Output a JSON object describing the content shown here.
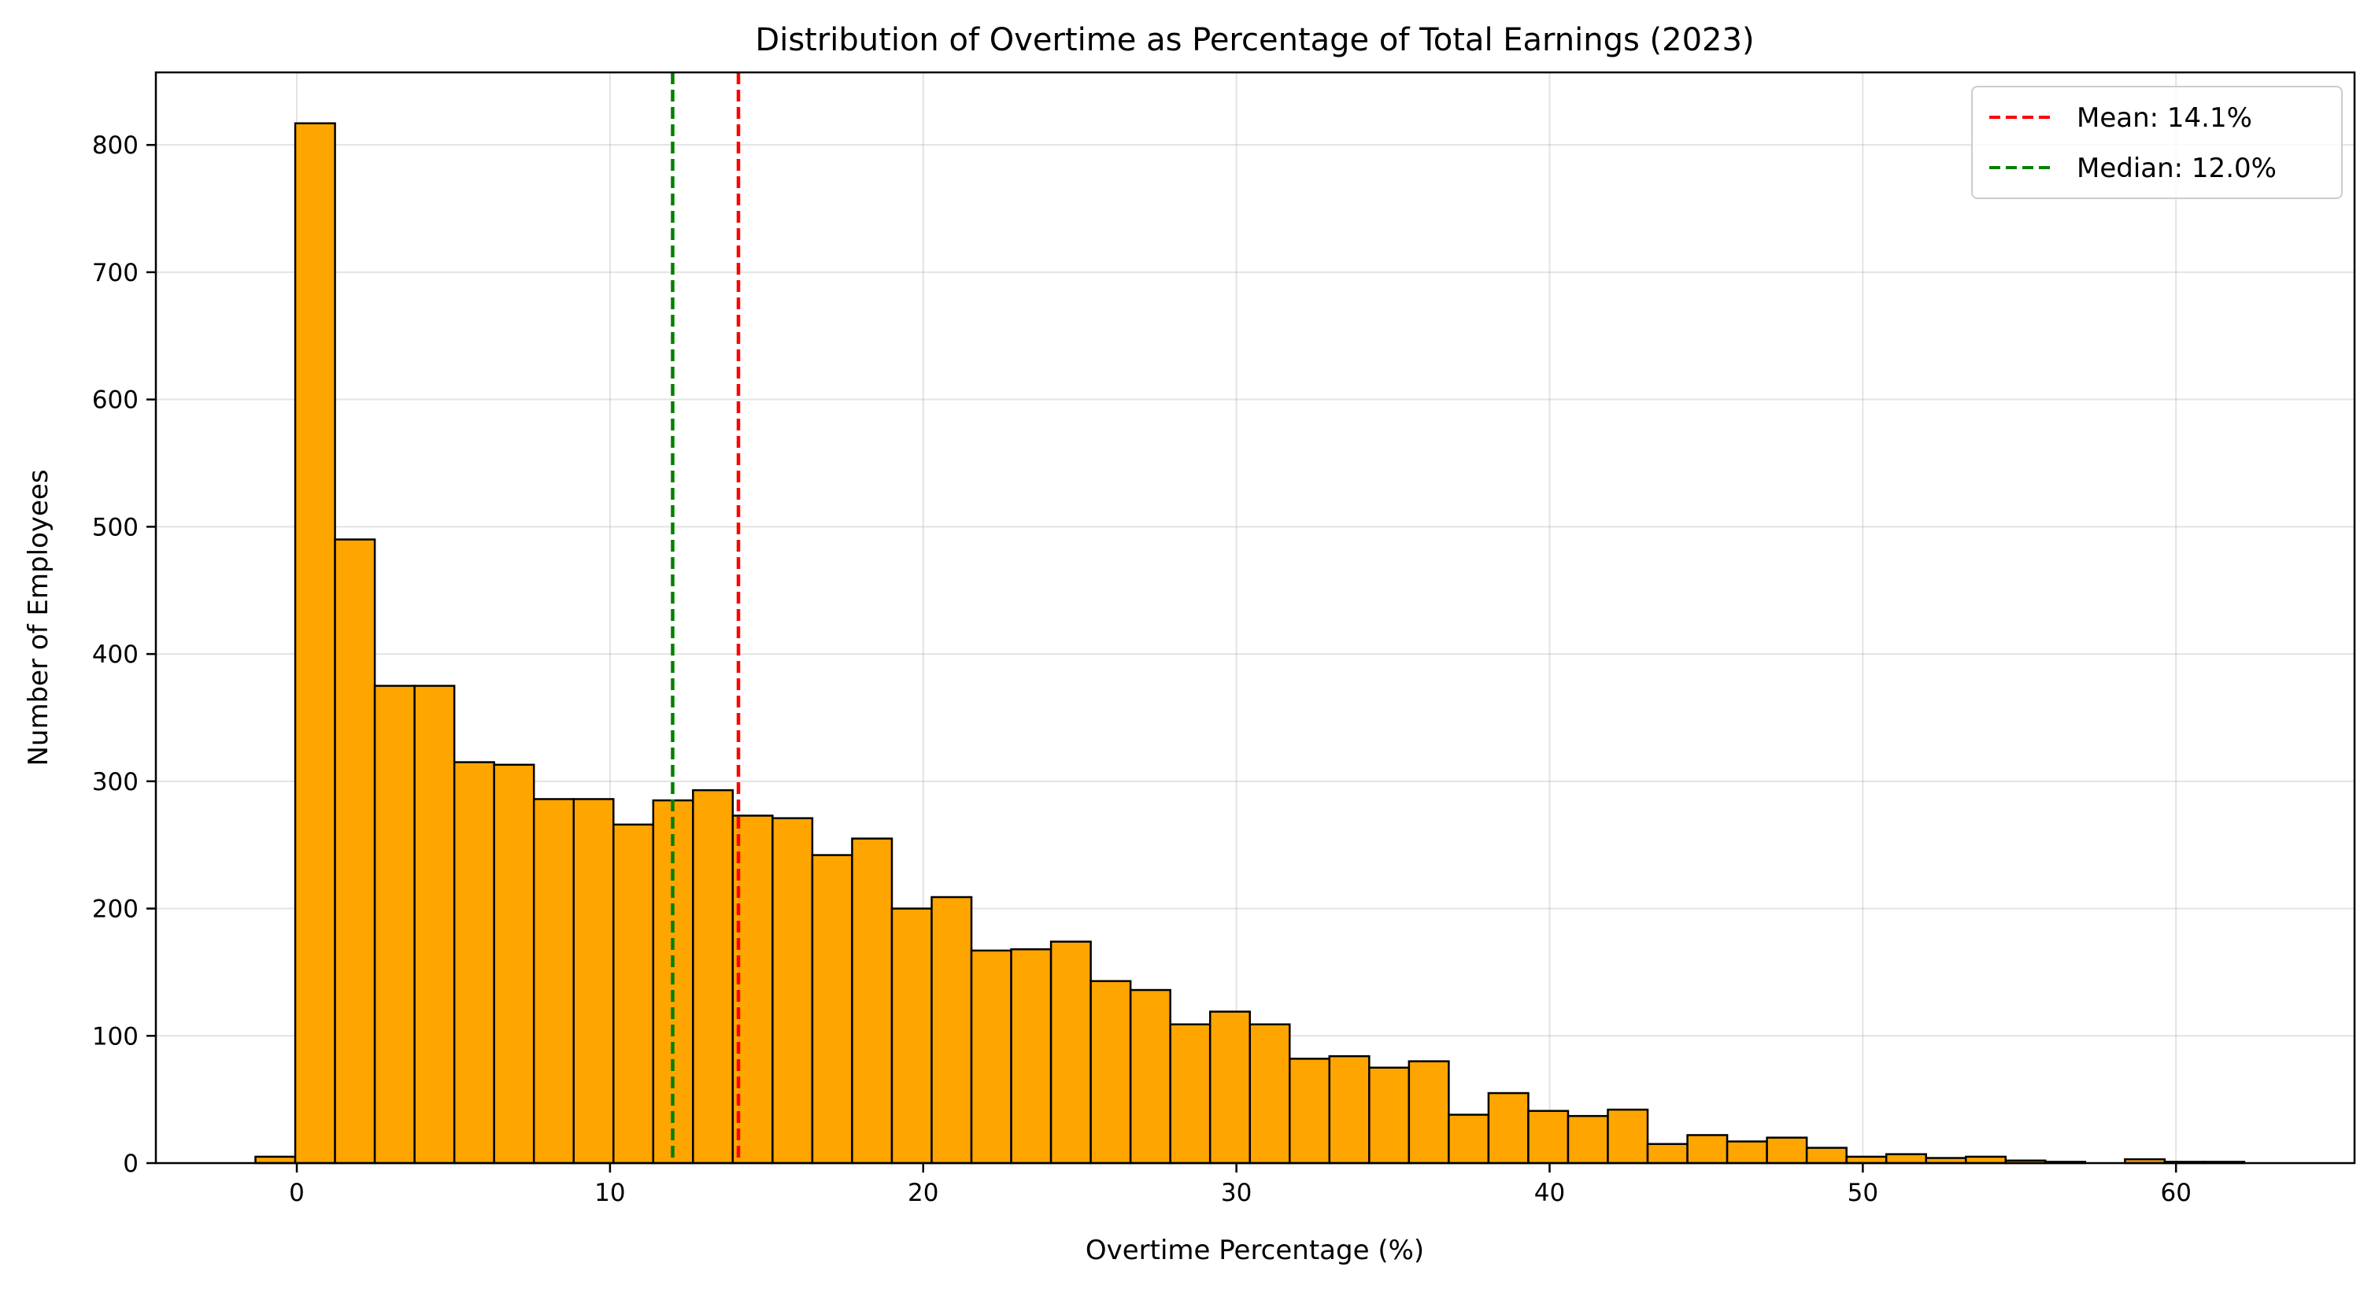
{
  "chart_data": {
    "type": "bar",
    "title": "Distribution of Overtime as Percentage of Total Earnings (2023)",
    "xlabel": "Overtime Percentage (%)",
    "ylabel": "Number of Employees",
    "xlim": [
      -4.5,
      65.7
    ],
    "ylim": [
      0,
      857
    ],
    "xticks": [
      0,
      10,
      20,
      30,
      40,
      50,
      60
    ],
    "yticks": [
      0,
      100,
      200,
      300,
      400,
      500,
      600,
      700,
      800
    ],
    "grid": true,
    "legend_position": "top-right",
    "bar_color": "#FFA500",
    "bar_edge_color": "#000000",
    "bins": {
      "start": -1.32,
      "width": 1.27,
      "counts": [
        5,
        817,
        490,
        375,
        375,
        315,
        313,
        286,
        286,
        266,
        285,
        293,
        273,
        271,
        242,
        255,
        200,
        209,
        167,
        168,
        174,
        143,
        136,
        109,
        119,
        109,
        82,
        84,
        75,
        80,
        38,
        55,
        41,
        37,
        42,
        15,
        22,
        17,
        20,
        12,
        5,
        7,
        4,
        5,
        2,
        1,
        0,
        3,
        1,
        1
      ]
    },
    "reference_lines": [
      {
        "label": "Mean: 14.1%",
        "x": 14.1,
        "color": "#FF0000",
        "style": "dashed"
      },
      {
        "label": "Median: 12.0%",
        "x": 12.0,
        "color": "#008000",
        "style": "dashed"
      }
    ]
  }
}
